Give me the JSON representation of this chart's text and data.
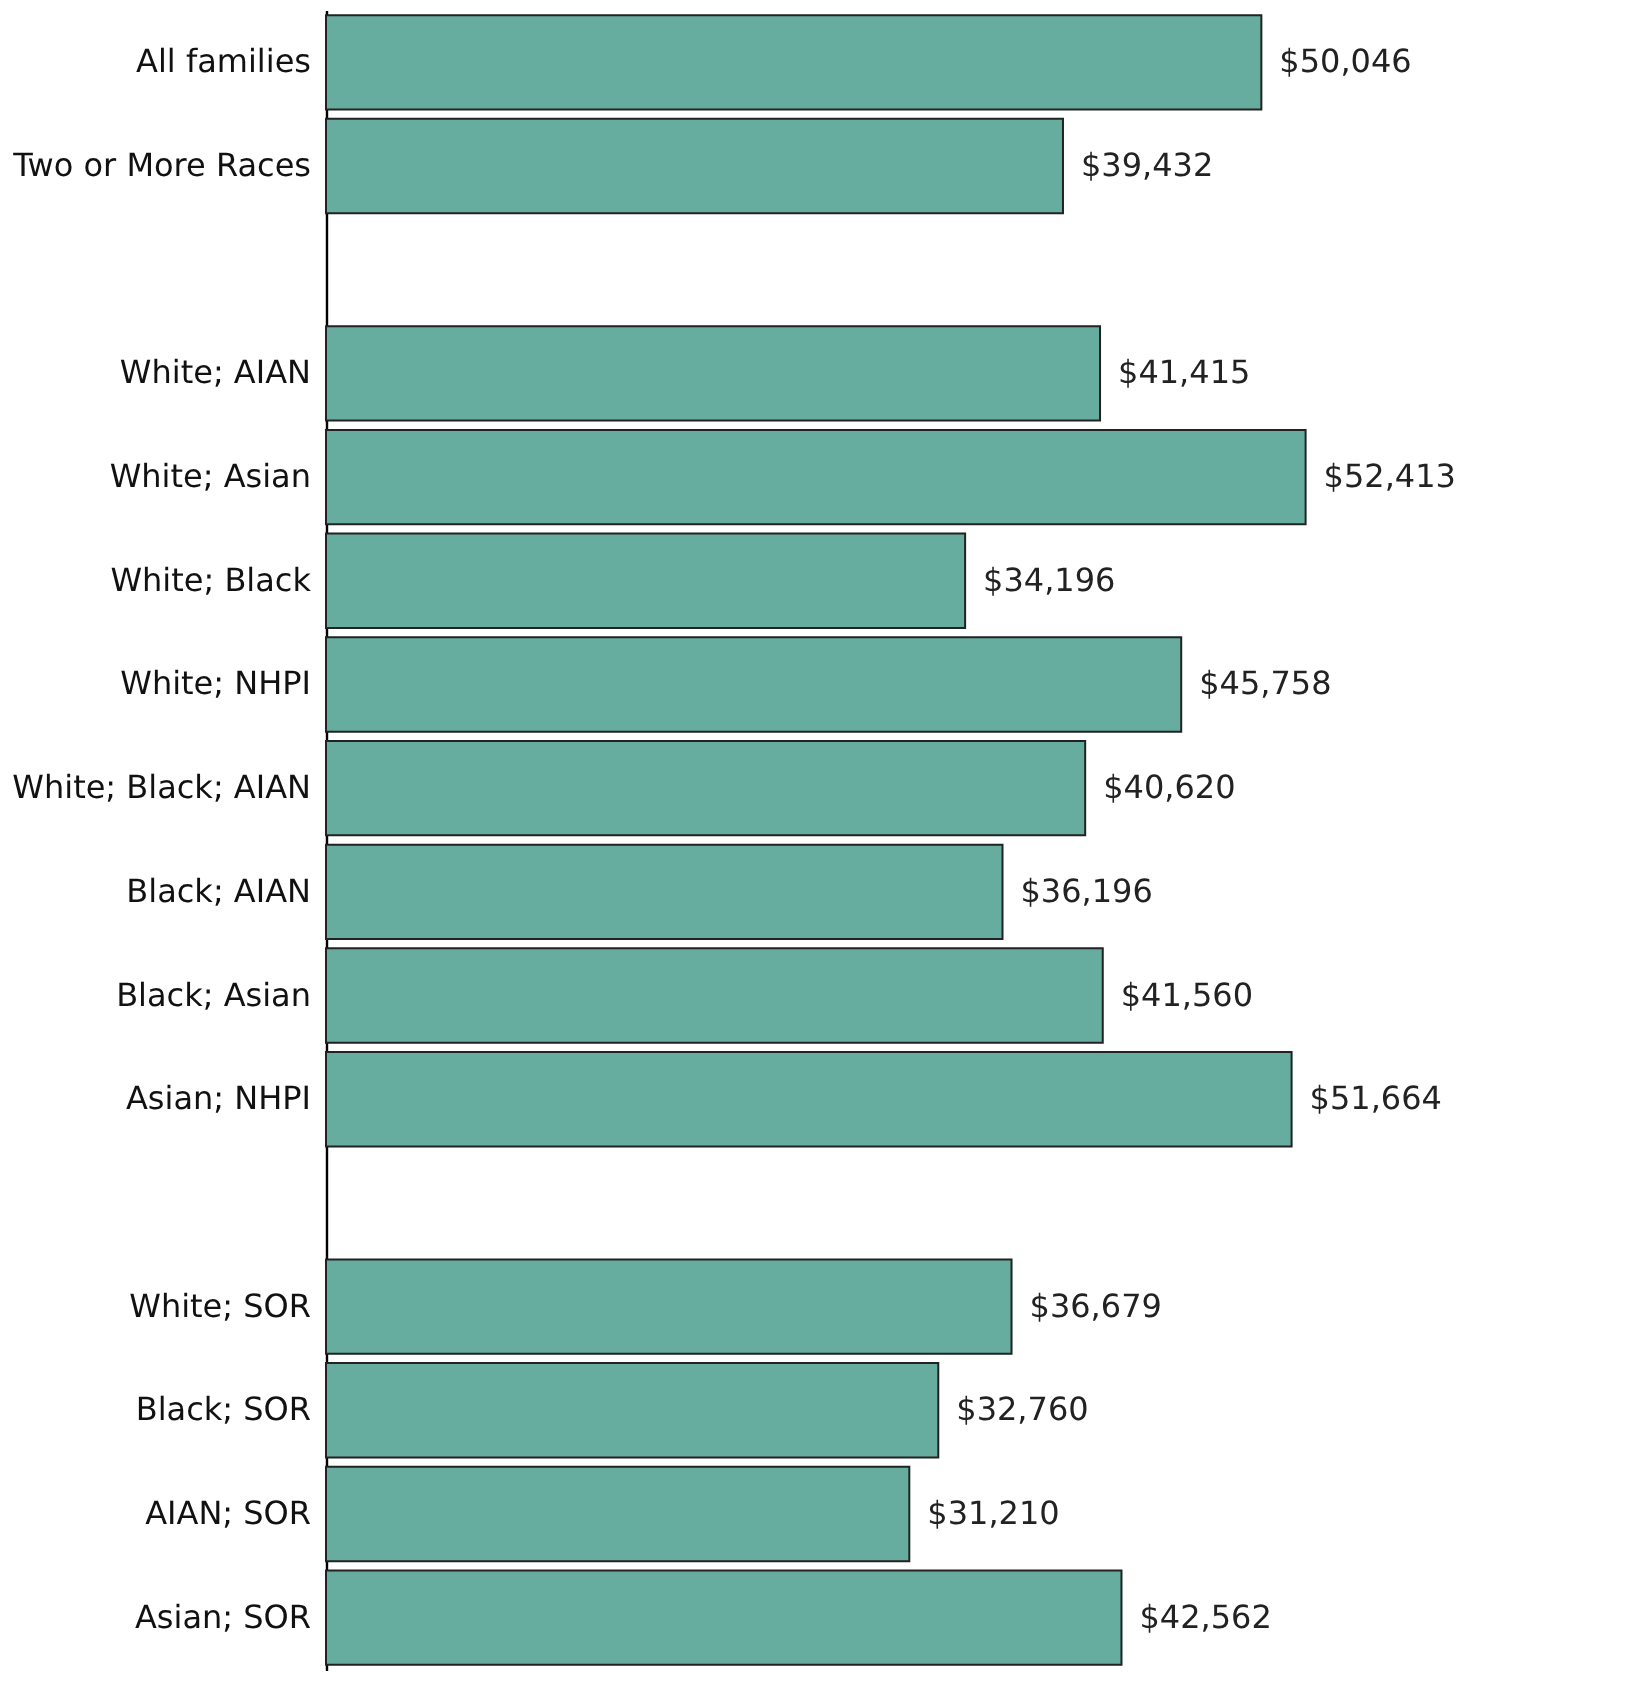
{
  "chart_data": {
    "type": "bar",
    "orientation": "horizontal",
    "color": "#66ada0",
    "categories": [
      "All families",
      "Two or More Races",
      null,
      "White; AIAN",
      "White; Asian",
      "White; Black",
      "White; NHPI",
      "White; Black; AIAN",
      "Black; AIAN",
      "Black; Asian",
      "Asian; NHPI",
      null,
      "White; SOR",
      "Black; SOR",
      "AIAN; SOR",
      "Asian; SOR"
    ],
    "values": [
      50046,
      39432,
      null,
      41415,
      52413,
      34196,
      45758,
      40620,
      36196,
      41560,
      51664,
      null,
      36679,
      32760,
      31210,
      42562
    ],
    "value_labels": [
      "$50,046",
      "$39,432",
      null,
      "$41,415",
      "$52,413",
      "$34,196",
      "$45,758",
      "$40,620",
      "$36,196",
      "$41,560",
      "$51,664",
      null,
      "$36,679",
      "$32,760",
      "$31,210",
      "$42,562"
    ],
    "grid": false
  }
}
